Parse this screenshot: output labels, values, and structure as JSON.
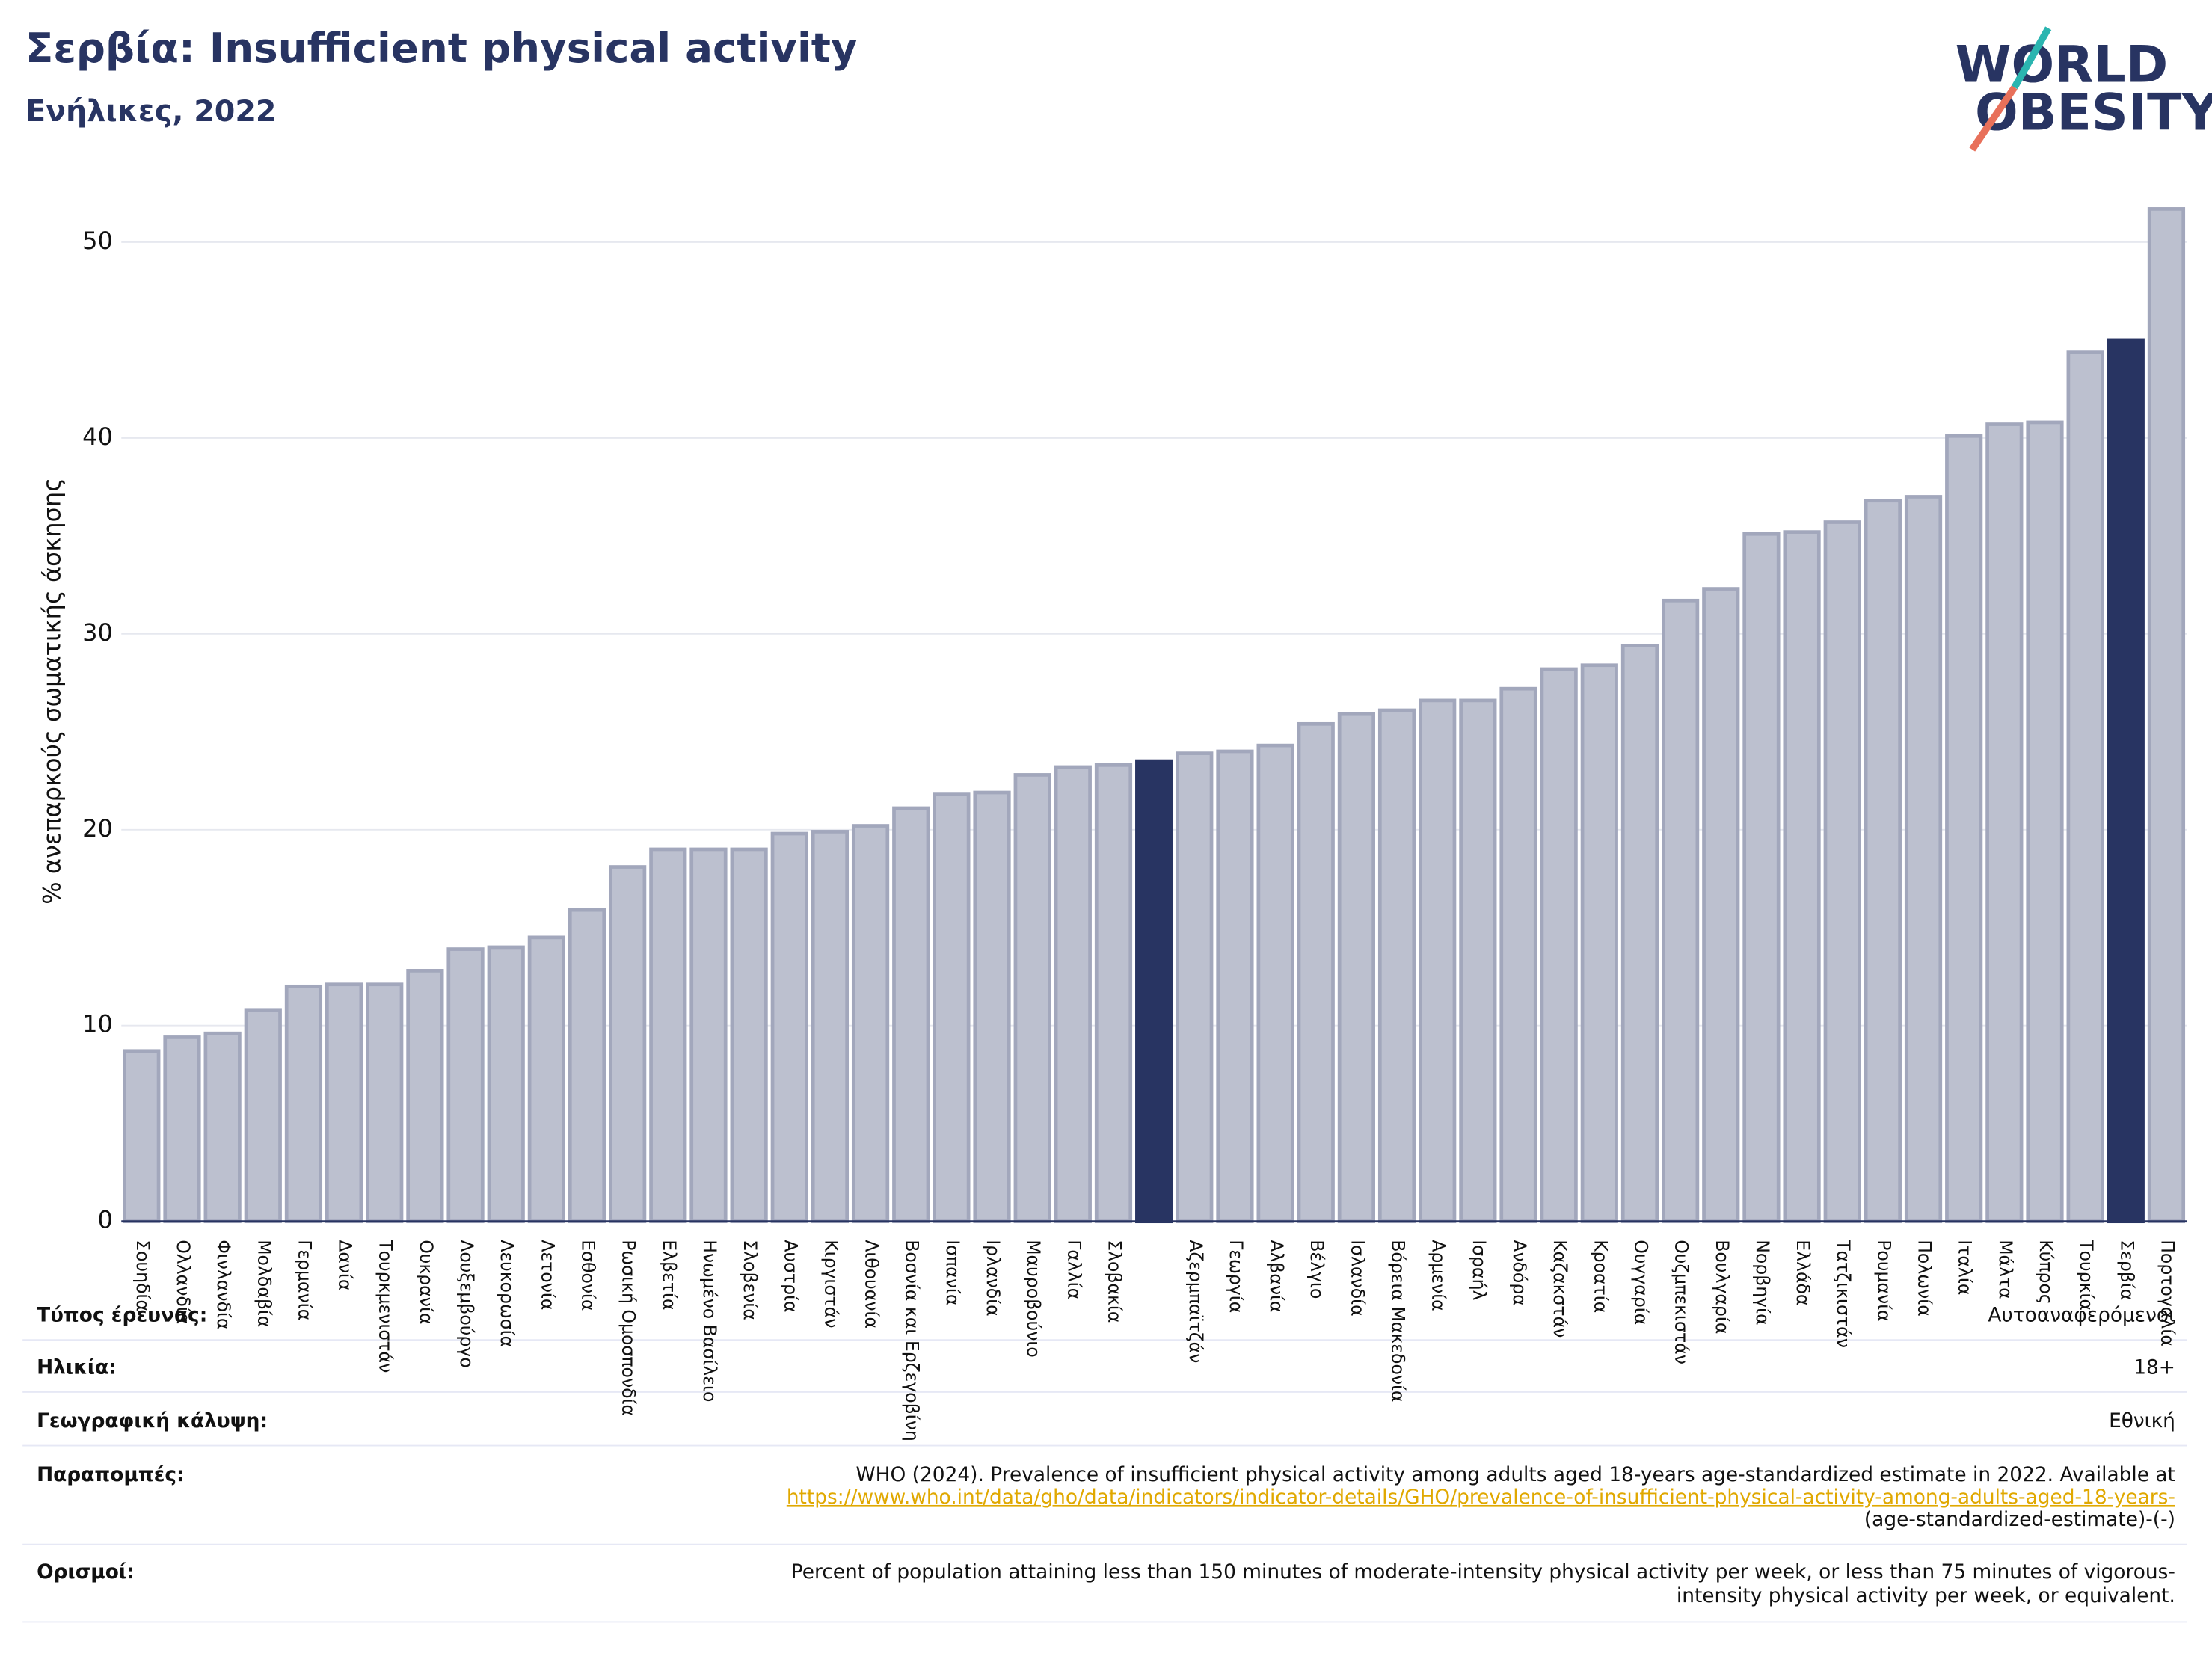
{
  "chart_data": {
    "type": "bar",
    "title": "Σερβία: Insufficient physical activity",
    "subtitle": "Ενήλικες, 2022",
    "y_label": "% ανεπαρκούς σωματικής άσκησης",
    "categories": [
      "Σουηδία",
      "Ολλανδία",
      "Φινλανδία",
      "Μολδαβία",
      "Γερμανία",
      "Δανία",
      "Τουρκμενιστάν",
      "Ουκρανία",
      "Λουξεμβούργο",
      "Λευκορωσία",
      "Λετονία",
      "Εσθονία",
      "Ρωσική Ομοσπονδία",
      "Ελβετία",
      "Ηνωμένο Βασίλειο",
      "Σλοβενία",
      "Αυστρία",
      "Κιργιστάν",
      "Λιθουανία",
      "Βοσνία και Ερζεγοβίνη",
      "Ισπανία",
      "Ιρλανδία",
      "Μαυροβούνιο",
      "Γαλλία",
      "Σλοβακία",
      null,
      "Αζερμπαϊτζάν",
      "Γεωργία",
      "Αλβανία",
      "Βέλγιο",
      "Ισλανδία",
      "Βόρεια Μακεδονία",
      "Αρμενία",
      "Ισραήλ",
      "Ανδόρα",
      "Καζακστάν",
      "Κροατία",
      "Ουγγαρία",
      "Ουζμπεκιστάν",
      "Βουλγαρία",
      "Νορβηγία",
      "Ελλάδα",
      "Τατζικιστάν",
      "Ρουμανία",
      "Πολωνία",
      "Ιταλία",
      "Μάλτα",
      "Κύπρος",
      "Τουρκία",
      "Σερβία",
      "Πορτογαλία"
    ],
    "values": [
      8.7,
      9.4,
      9.6,
      10.8,
      12.0,
      12.1,
      12.1,
      12.8,
      13.9,
      14.0,
      14.5,
      15.9,
      18.1,
      19.0,
      19.0,
      19.0,
      19.8,
      19.9,
      20.2,
      21.1,
      21.8,
      21.9,
      22.8,
      23.2,
      23.3,
      23.5,
      23.9,
      24.0,
      24.3,
      25.4,
      25.9,
      26.1,
      26.6,
      26.6,
      27.2,
      28.2,
      28.4,
      29.4,
      31.7,
      32.3,
      35.1,
      35.2,
      35.7,
      36.8,
      37.0,
      40.1,
      40.7,
      40.8,
      44.4,
      45.0,
      51.7
    ],
    "colors": [
      "#bcc0cf",
      "#bcc0cf",
      "#bcc0cf",
      "#bcc0cf",
      "#bcc0cf",
      "#bcc0cf",
      "#bcc0cf",
      "#bcc0cf",
      "#bcc0cf",
      "#bcc0cf",
      "#bcc0cf",
      "#bcc0cf",
      "#bcc0cf",
      "#bcc0cf",
      "#bcc0cf",
      "#bcc0cf",
      "#bcc0cf",
      "#bcc0cf",
      "#bcc0cf",
      "#bcc0cf",
      "#bcc0cf",
      "#bcc0cf",
      "#bcc0cf",
      "#bcc0cf",
      "#bcc0cf",
      "#283462",
      "#bcc0cf",
      "#bcc0cf",
      "#bcc0cf",
      "#bcc0cf",
      "#bcc0cf",
      "#bcc0cf",
      "#bcc0cf",
      "#bcc0cf",
      "#bcc0cf",
      "#bcc0cf",
      "#bcc0cf",
      "#bcc0cf",
      "#bcc0cf",
      "#bcc0cf",
      "#bcc0cf",
      "#bcc0cf",
      "#bcc0cf",
      "#bcc0cf",
      "#bcc0cf",
      "#bcc0cf",
      "#bcc0cf",
      "#bcc0cf",
      "#bcc0cf",
      "#283462",
      "#bcc0cf"
    ],
    "ylim": [
      0,
      52.5
    ],
    "yticks": [
      0,
      10,
      20,
      30,
      40,
      50
    ],
    "grid": true
  },
  "logo": {
    "line1": "WORLD",
    "line2": "OBESITY"
  },
  "details": {
    "survey_type": {
      "label": "Τύπος έρευνας:",
      "value": "Αυτοαναφερόμενοι"
    },
    "age": {
      "label": "Ηλικία:",
      "value": "18+"
    },
    "coverage": {
      "label": "Γεωγραφική κάλυψη:",
      "value": "Εθνική"
    },
    "references": {
      "label": "Παραπομπές:",
      "text": "WHO (2024). Prevalence of insufficient physical activity among adults aged 18-years age-standardized estimate in 2022. Available at",
      "url": "https://www.who.int/data/gho/data/indicators/indicator-details/GHO/prevalence-of-insufficient-physical-activity-among-adults-aged-18-years-",
      "text_end": "(age-standardized-estimate)-(-)"
    },
    "definitions": {
      "label": "Ορισμοί:",
      "lines": [
        "Percent of population attaining less than 150 minutes of moderate-intensity physical activity per week, or less than 75 minutes of vigorous-",
        "intensity physical activity per week, or equivalent."
      ]
    }
  }
}
